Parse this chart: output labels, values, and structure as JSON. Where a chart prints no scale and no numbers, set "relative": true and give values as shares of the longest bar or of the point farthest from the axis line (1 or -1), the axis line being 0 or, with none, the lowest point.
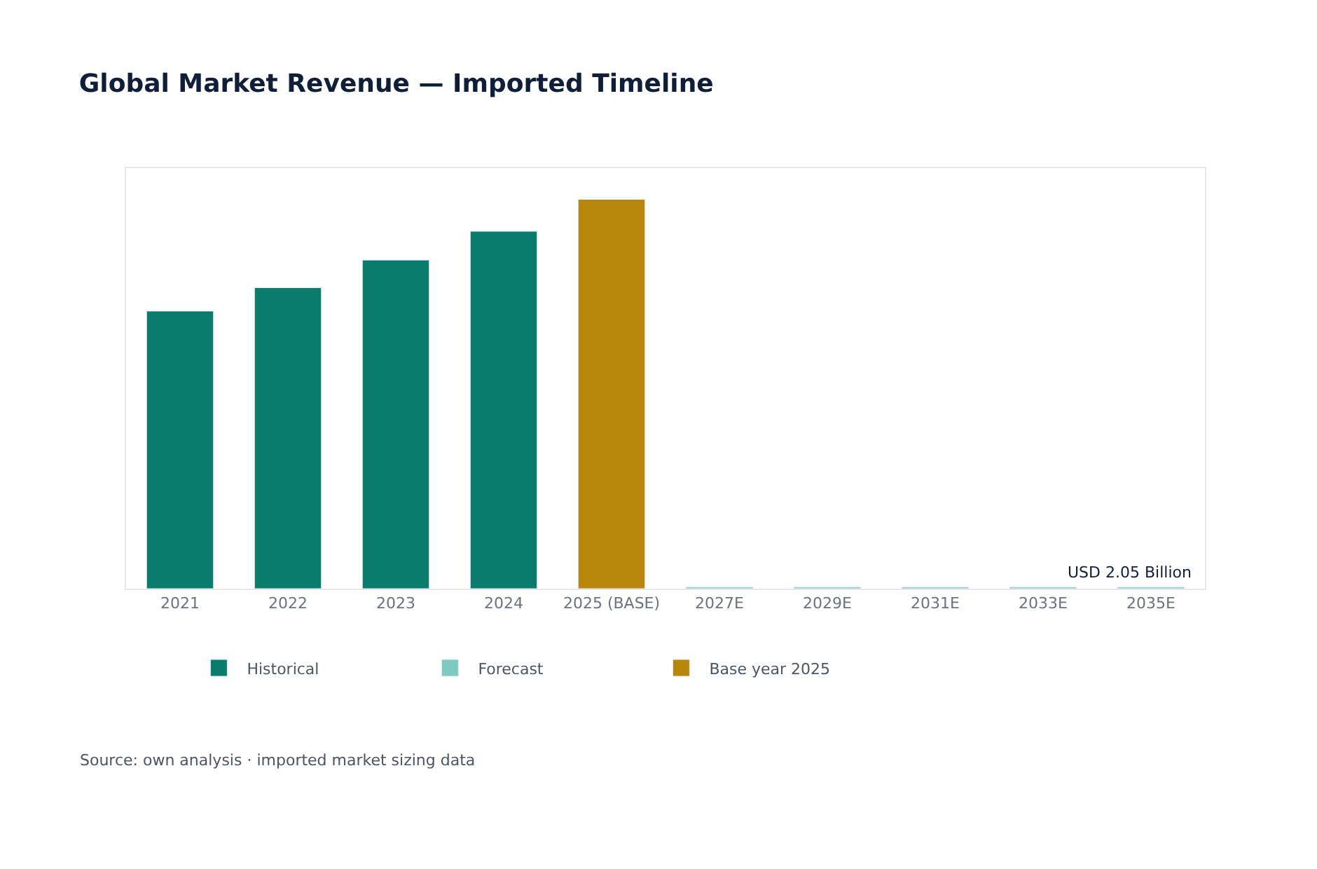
{
  "chart_data": {
    "type": "bar",
    "title": "Global Market Revenue — Imported Timeline",
    "relative": true,
    "categories": [
      "2021",
      "2022",
      "2023",
      "2024",
      "2025 (BASE)",
      "2027E",
      "2029E",
      "2031E",
      "2033E",
      "2035E"
    ],
    "series": [
      {
        "name": "Historical",
        "color": "#0a7c6e",
        "values": [
          0.713,
          0.773,
          0.844,
          0.918,
          null,
          null,
          null,
          null,
          null,
          null
        ]
      },
      {
        "name": "Forecast",
        "color": "#7fcac0",
        "values": [
          null,
          null,
          null,
          null,
          null,
          0.004,
          0.004,
          0.004,
          0.004,
          0.004
        ]
      },
      {
        "name": "Base year 2025",
        "color": "#b8860b",
        "values": [
          null,
          null,
          null,
          null,
          1,
          null,
          null,
          null,
          null,
          null
        ]
      }
    ],
    "annotations": [
      "USD 2.05 Billion",
      "Source: own analysis · imported market sizing data"
    ],
    "legend": "bottom left"
  }
}
